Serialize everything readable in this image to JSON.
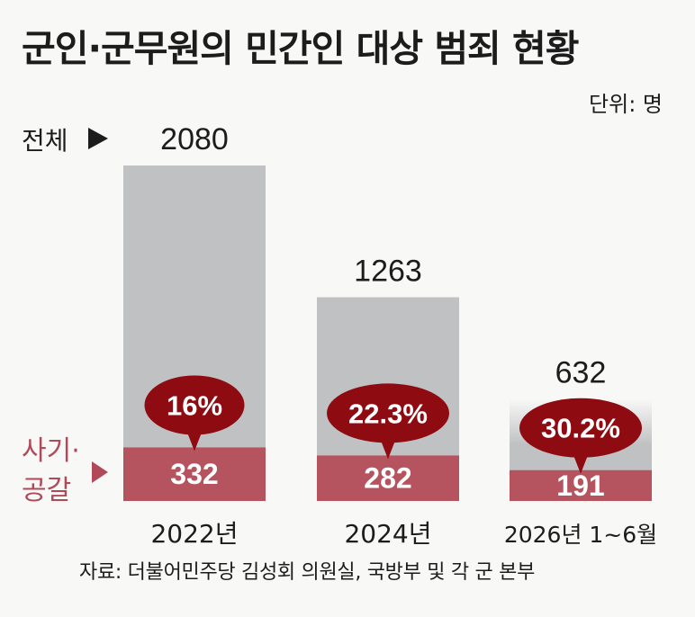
{
  "header": {
    "title": "군인·군무원의 민간인 대상 범죄 현황",
    "unit": "단위: 명"
  },
  "source": "자료: 더불어민주당 김성회 의원실, 국방부 및 각 군 본부",
  "colors": {
    "total_bar": "#c0c1c3",
    "fraud_bar": "#b5535f",
    "bubble": "#8f0b12",
    "fraud_label": "#b14a58",
    "background": "#f8f8f7"
  },
  "chart_data": {
    "type": "bar",
    "categories": [
      "2022년",
      "2024년",
      "2026년 1~6월"
    ],
    "series": [
      {
        "name": "전체",
        "values": [
          2080,
          1263,
          632
        ]
      },
      {
        "name": "사기·공갈",
        "values": [
          332,
          282,
          191
        ]
      }
    ],
    "percentages": [
      "16%",
      "22.3%",
      "30.2%"
    ],
    "total_values_label": [
      "2080",
      "1263",
      "632"
    ],
    "fraud_values_label": [
      "332",
      "282",
      "191"
    ],
    "legend": {
      "total": "전체",
      "fraud_line1": "사기·",
      "fraud_line2": "공갈"
    },
    "ylim": [
      0,
      2080
    ]
  }
}
